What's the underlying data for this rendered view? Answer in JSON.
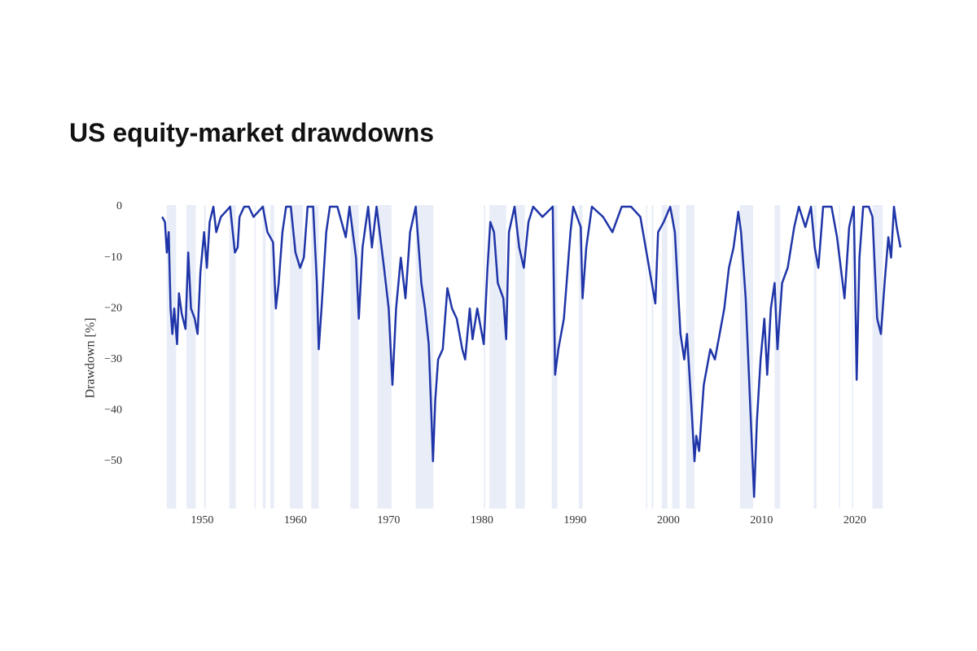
{
  "chart_data": {
    "type": "line",
    "title": "US equity-market drawdowns",
    "y_label": "Drawdown [%]",
    "color": "#1f35a8",
    "shade_color": "#e8edf7",
    "xlim": [
      1945.6,
      2024.9
    ],
    "xticks": [
      1950,
      1960,
      1970,
      1980,
      1990,
      2000,
      2010,
      2020
    ],
    "ylim": [
      -59.3,
      0
    ],
    "yticks": [
      {
        "value": 0,
        "label": "0"
      },
      {
        "value": -10,
        "label": "−10"
      },
      {
        "value": -20,
        "label": "−20"
      },
      {
        "value": -30,
        "label": "−30"
      },
      {
        "value": -40,
        "label": "−40"
      },
      {
        "value": -50,
        "label": "−50"
      }
    ],
    "shaded_periods": [
      [
        1946.2,
        1947.2
      ],
      [
        1948.3,
        1949.3
      ],
      [
        1950.2,
        1950.4
      ],
      [
        1952.9,
        1953.6
      ],
      [
        1955.6,
        1955.7
      ],
      [
        1956.5,
        1956.8
      ],
      [
        1957.3,
        1957.7
      ],
      [
        1959.4,
        1960.8
      ],
      [
        1961.7,
        1962.5
      ],
      [
        1965.9,
        1966.8
      ],
      [
        1968.8,
        1970.3
      ],
      [
        1972.9,
        1974.8
      ],
      [
        1980.2,
        1980.35
      ],
      [
        1980.8,
        1982.6
      ],
      [
        1983.6,
        1984.6
      ],
      [
        1987.5,
        1988.1
      ],
      [
        1990.4,
        1990.8
      ],
      [
        1997.6,
        1997.7
      ],
      [
        1998.2,
        1998.4
      ],
      [
        1999.3,
        1999.9
      ],
      [
        2000.4,
        2001.2
      ],
      [
        2001.9,
        2002.8
      ],
      [
        2007.7,
        2009.1
      ],
      [
        2011.4,
        2012
      ],
      [
        2015.6,
        2015.9
      ],
      [
        2018.3,
        2018.4
      ],
      [
        2019.7,
        2019.8
      ],
      [
        2021.9,
        2023
      ]
    ],
    "x": [
      1945.7,
      1946.0,
      1946.2,
      1946.4,
      1946.6,
      1946.8,
      1947.0,
      1947.3,
      1947.5,
      1947.8,
      1948.2,
      1948.5,
      1948.8,
      1949.2,
      1949.5,
      1949.8,
      1950.2,
      1950.5,
      1950.8,
      1951.2,
      1951.5,
      1952,
      1952.5,
      1953,
      1953.5,
      1953.8,
      1954,
      1954.5,
      1955,
      1955.5,
      1956,
      1956.5,
      1957,
      1957.6,
      1957.9,
      1958.2,
      1958.6,
      1959,
      1959.5,
      1960,
      1960.5,
      1960.9,
      1961.3,
      1961.9,
      1962.3,
      1962.5,
      1962.8,
      1963.3,
      1963.7,
      1964.5,
      1965.4,
      1965.8,
      1966.5,
      1966.8,
      1967.2,
      1967.8,
      1968.2,
      1968.7,
      1969.5,
      1970.0,
      1970.4,
      1970.8,
      1971.3,
      1971.8,
      1972.3,
      1972.9,
      1973.5,
      1973.9,
      1974.3,
      1974.6,
      1974.75,
      1975.0,
      1975.3,
      1975.8,
      1976.3,
      1976.8,
      1977.3,
      1977.9,
      1978.2,
      1978.7,
      1979.0,
      1979.5,
      1980.2,
      1980.6,
      1980.9,
      1981.3,
      1981.7,
      1982.3,
      1982.6,
      1982.9,
      1983.5,
      1984.0,
      1984.5,
      1985,
      1985.5,
      1986.5,
      1987.6,
      1987.85,
      1988.2,
      1988.8,
      1989.5,
      1989.8,
      1990.6,
      1990.8,
      1991.2,
      1991.8,
      1993,
      1994,
      1995,
      1996,
      1997,
      1998.6,
      1998.9,
      1999.5,
      2000.2,
      2000.7,
      2001.0,
      2001.3,
      2001.7,
      2002.0,
      2002.5,
      2002.8,
      2003.0,
      2003.3,
      2003.8,
      2004.5,
      2005.0,
      2005.5,
      2006.0,
      2006.5,
      2007.0,
      2007.5,
      2007.8,
      2008.3,
      2008.8,
      2009.2,
      2009.5,
      2009.9,
      2010.3,
      2010.6,
      2011.0,
      2011.4,
      2011.7,
      2012.2,
      2012.8,
      2013.5,
      2014,
      2014.7,
      2015.3,
      2015.7,
      2016.1,
      2016.6,
      2017.5,
      2018.1,
      2018.9,
      2019.4,
      2019.9,
      2020.2,
      2020.5,
      2020.9,
      2021.5,
      2021.9,
      2022.4,
      2022.8,
      2023.2,
      2023.6,
      2023.9,
      2024.2,
      2024.5,
      2024.9
    ],
    "values": [
      -2,
      -3,
      -9,
      -5,
      -20,
      -25,
      -20,
      -27,
      -17,
      -21,
      -24,
      -9,
      -20,
      -22,
      -25,
      -13,
      -5,
      -12,
      -3,
      0,
      -5,
      -2,
      -1,
      0,
      -9,
      -8,
      -2,
      0,
      0,
      -2,
      -1,
      0,
      -5,
      -7,
      -20,
      -15,
      -5,
      0,
      0,
      -9,
      -12,
      -10,
      0,
      0,
      -15,
      -28,
      -20,
      -5,
      0,
      0,
      -6,
      0,
      -10,
      -22,
      -8,
      0,
      -8,
      0,
      -12,
      -20,
      -35,
      -20,
      -10,
      -18,
      -5,
      0,
      -15,
      -20,
      -27,
      -42,
      -50,
      -38,
      -30,
      -28,
      -16,
      -20,
      -22,
      -28,
      -30,
      -20,
      -26,
      -20,
      -27,
      -12,
      -3,
      -5,
      -15,
      -18,
      -26,
      -5,
      0,
      -8,
      -12,
      -3,
      0,
      -2,
      0,
      -33,
      -28,
      -22,
      -5,
      0,
      -4,
      -18,
      -8,
      0,
      -2,
      -5,
      0,
      0,
      -2,
      -19,
      -5,
      -3,
      0,
      -5,
      -15,
      -25,
      -30,
      -25,
      -40,
      -50,
      -45,
      -48,
      -35,
      -28,
      -30,
      -25,
      -20,
      -12,
      -8,
      -1,
      -5,
      -18,
      -40,
      -57,
      -42,
      -30,
      -22,
      -33,
      -20,
      -15,
      -28,
      -15,
      -12,
      -4,
      0,
      -4,
      0,
      -8,
      -12,
      0,
      0,
      -6,
      -18,
      -4,
      0,
      -34,
      -10,
      0,
      0,
      -2,
      -22,
      -25,
      -15,
      -6,
      -10,
      0,
      -4,
      -8
    ]
  }
}
